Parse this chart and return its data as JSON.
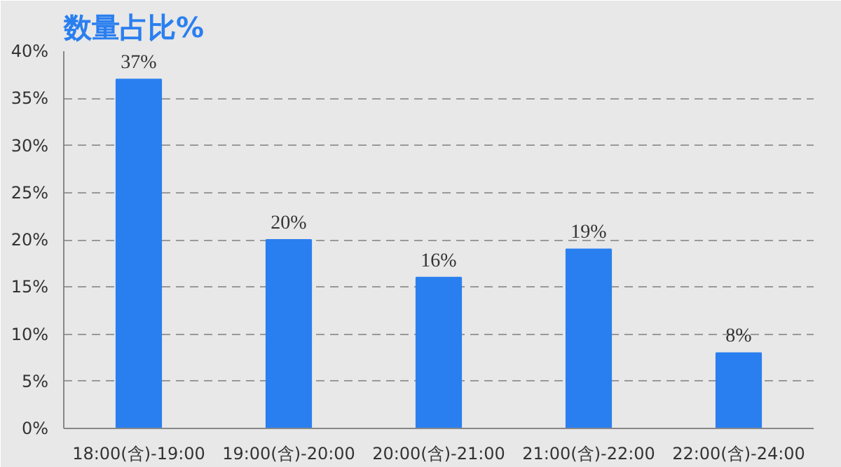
{
  "chart_data": {
    "type": "bar",
    "title": "数量占比%",
    "categories": [
      "18:00(含)-19:00",
      "19:00(含)-20:00",
      "20:00(含)-21:00",
      "21:00(含)-22:00",
      "22:00(含)-24:00"
    ],
    "values": [
      37,
      20,
      16,
      19,
      8
    ],
    "value_labels": [
      "37%",
      "20%",
      "16%",
      "19%",
      "8%"
    ],
    "color": "#2a7ff0",
    "ylim": [
      0,
      40
    ],
    "yticks": [
      {
        "value": 0,
        "label": "0%"
      },
      {
        "value": 5,
        "label": "5%"
      },
      {
        "value": 10,
        "label": "10%"
      },
      {
        "value": 15,
        "label": "15%"
      },
      {
        "value": 20,
        "label": "20%"
      },
      {
        "value": 25,
        "label": "25%"
      },
      {
        "value": 30,
        "label": "30%"
      },
      {
        "value": 35,
        "label": "35%"
      },
      {
        "value": 40,
        "label": "40%"
      }
    ],
    "grid": "y"
  }
}
